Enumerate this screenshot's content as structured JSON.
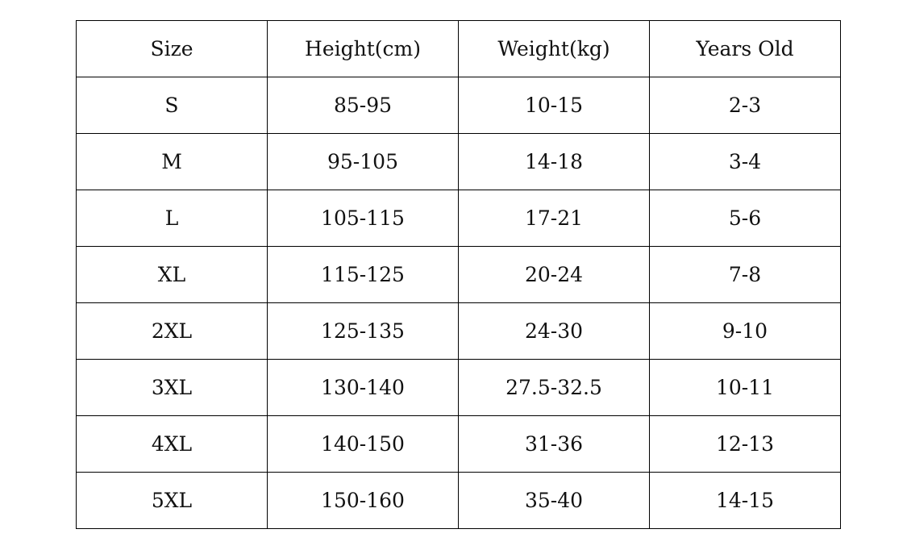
{
  "table": {
    "header": [
      "Size",
      "Height(cm)",
      "Weight(kg)",
      "Years Old"
    ],
    "rows": [
      [
        "S",
        "85-95",
        "10-15",
        "2-3"
      ],
      [
        "M",
        "95-105",
        "14-18",
        "3-4"
      ],
      [
        "L",
        "105-115",
        "17-21",
        "5-6"
      ],
      [
        "XL",
        "115-125",
        "20-24",
        "7-8"
      ],
      [
        "2XL",
        "125-135",
        "24-30",
        "9-10"
      ],
      [
        "3XL",
        "130-140",
        "27.5-32.5",
        "10-11"
      ],
      [
        "4XL",
        "140-150",
        "31-36",
        "12-13"
      ],
      [
        "5XL",
        "150-160",
        "35-40",
        "14-15"
      ]
    ]
  }
}
